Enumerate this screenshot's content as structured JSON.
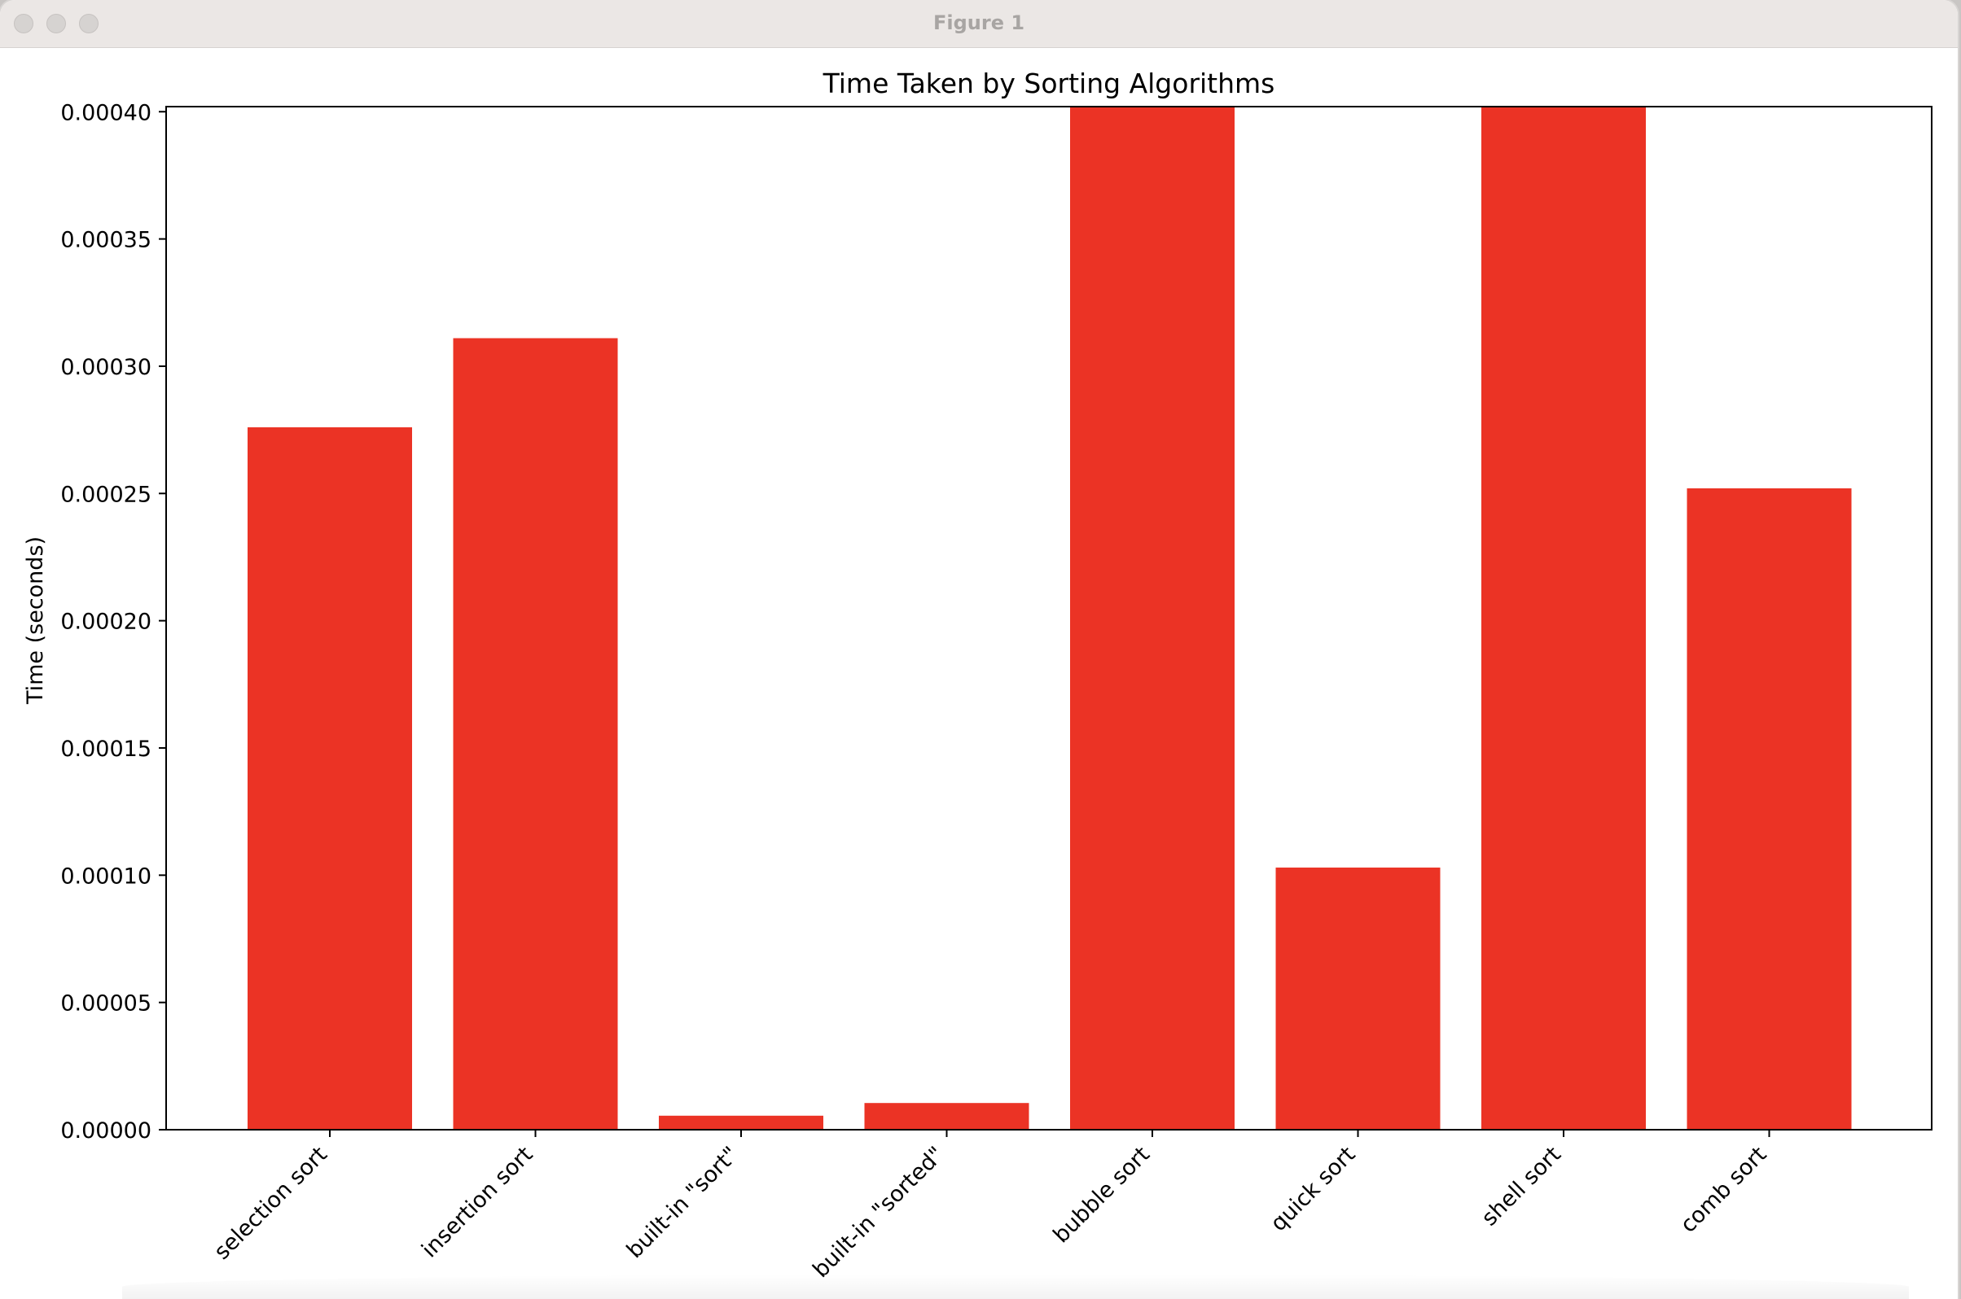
{
  "window": {
    "title": "Figure 1"
  },
  "colors": {
    "bar": "#eb3325",
    "axis": "#000000"
  },
  "chart_data": {
    "type": "bar",
    "title": "Time Taken by Sorting Algorithms",
    "xlabel": "",
    "ylabel": "Time (seconds)",
    "categories": [
      "selection sort",
      "insertion sort",
      "built-in \"sort\"",
      "built-in \"sorted\"",
      "bubble sort",
      "quick sort",
      "shell sort",
      "comb sort"
    ],
    "values": [
      0.000276,
      0.000311,
      5.5e-06,
      1.05e-05,
      0.000402,
      0.000103,
      0.000402,
      0.000252
    ],
    "ylim": [
      0,
      0.000402
    ],
    "yticks": [
      0,
      5e-05,
      0.0001,
      0.00015,
      0.0002,
      0.00025,
      0.0003,
      0.00035,
      0.0004
    ],
    "ytick_labels": [
      "0.00000",
      "0.00005",
      "0.00010",
      "0.00015",
      "0.00020",
      "0.00025",
      "0.00030",
      "0.00035",
      "0.00040"
    ],
    "grid": false,
    "legend": "none"
  }
}
